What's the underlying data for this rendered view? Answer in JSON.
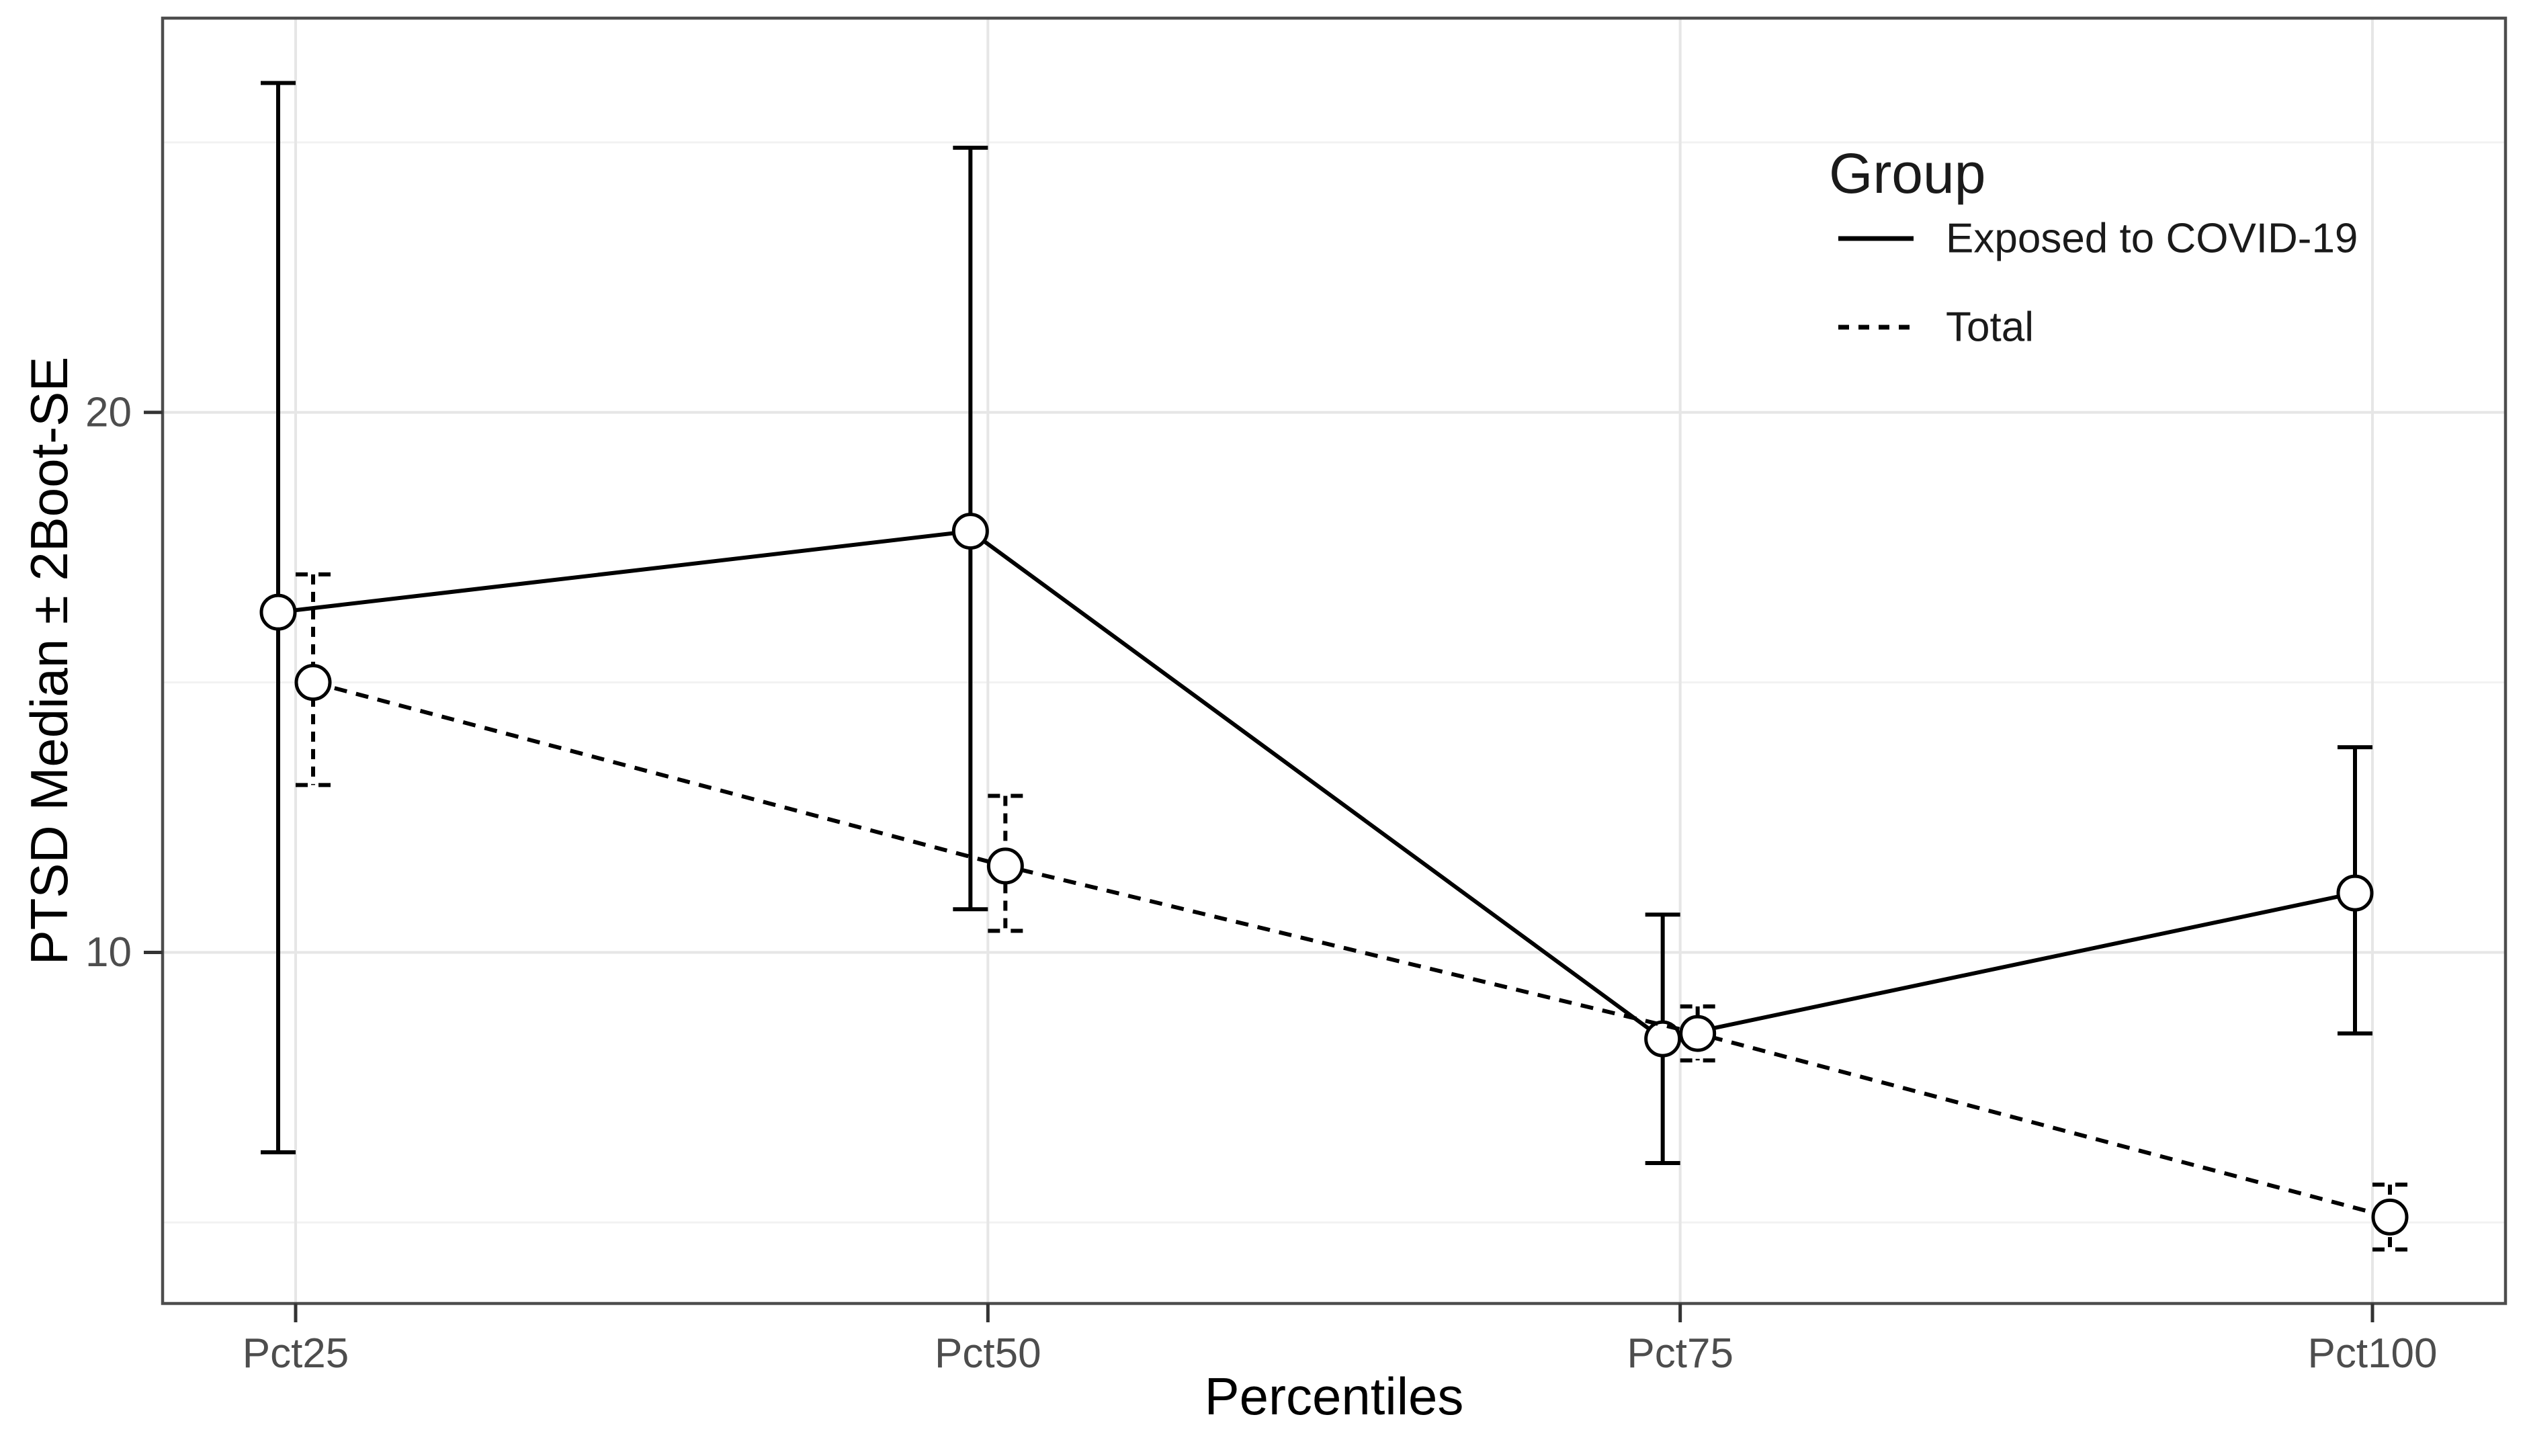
{
  "figure": {
    "background": "#ffffff",
    "y_axis": {
      "title": "PTSD Median ± 2Boot-SE",
      "ticks": [
        {
          "value": 20,
          "label": "20"
        },
        {
          "value": 10,
          "label": "10"
        }
      ],
      "minor_gridlines": [
        25,
        15,
        5
      ],
      "range": [
        3.5,
        27.3
      ]
    },
    "x_axis": {
      "title": "Percentiles",
      "categories": [
        "Pct25",
        "Pct50",
        "Pct75",
        "Pct100"
      ]
    },
    "legend": {
      "title": "Group",
      "entries": [
        {
          "label": "Exposed to COVID-19",
          "line_style": "solid"
        },
        {
          "label": "Total",
          "line_style": "dashed"
        }
      ]
    },
    "colors": {
      "series": "#000000",
      "point_fill": "#ffffff",
      "tick_label": "#4d4d4d",
      "axis_title": "#000000",
      "legend_text": "#1a1a1a",
      "panel_border": "#4d4d4d",
      "tick_mark": "#333333",
      "grid_major": "#e6e6e6",
      "grid_minor": "#f2f2f2"
    }
  },
  "chart_data": {
    "type": "line",
    "title": "",
    "xlabel": "Percentiles",
    "ylabel": "PTSD Median ± 2Boot-SE",
    "categories": [
      "Pct25",
      "Pct50",
      "Pct75",
      "Pct100"
    ],
    "series": [
      {
        "name": "Exposed to COVID-19",
        "line_style": "solid",
        "marker": "open-circle",
        "values": [
          16.3,
          17.8,
          8.4,
          11.1
        ],
        "error_low": [
          6.3,
          10.8,
          6.1,
          8.5
        ],
        "error_high": [
          26.1,
          24.9,
          10.7,
          13.8
        ]
      },
      {
        "name": "Total",
        "line_style": "dashed",
        "marker": "open-circle",
        "values": [
          15.0,
          11.6,
          8.5,
          5.1
        ],
        "error_low": [
          13.1,
          10.4,
          8.0,
          4.5
        ],
        "error_high": [
          17.0,
          12.9,
          9.0,
          5.7
        ]
      }
    ],
    "ylim": [
      3.5,
      27.3
    ],
    "yticks": [
      20,
      10
    ],
    "yminor": [
      25,
      15,
      5
    ],
    "grid": true,
    "legend_title": "Group",
    "legend_position": "inside top-right"
  }
}
